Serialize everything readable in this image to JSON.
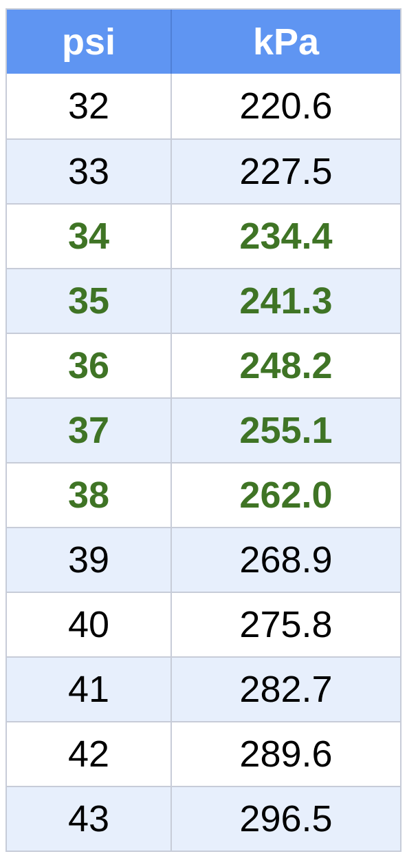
{
  "table": {
    "headers": [
      "psi",
      "kPa"
    ],
    "rows": [
      {
        "psi": "32",
        "kpa": "220.6",
        "highlight": false
      },
      {
        "psi": "33",
        "kpa": "227.5",
        "highlight": false
      },
      {
        "psi": "34",
        "kpa": "234.4",
        "highlight": true
      },
      {
        "psi": "35",
        "kpa": "241.3",
        "highlight": true
      },
      {
        "psi": "36",
        "kpa": "248.2",
        "highlight": true
      },
      {
        "psi": "37",
        "kpa": "255.1",
        "highlight": true
      },
      {
        "psi": "38",
        "kpa": "262.0",
        "highlight": true
      },
      {
        "psi": "39",
        "kpa": "268.9",
        "highlight": false
      },
      {
        "psi": "40",
        "kpa": "275.8",
        "highlight": false
      },
      {
        "psi": "41",
        "kpa": "282.7",
        "highlight": false
      },
      {
        "psi": "42",
        "kpa": "289.6",
        "highlight": false
      },
      {
        "psi": "43",
        "kpa": "296.5",
        "highlight": false
      }
    ]
  },
  "colors": {
    "header_bg": "#5f95f2",
    "highlight_text": "#3f7425",
    "stripe_bg": "#e7effc",
    "border": "#c7ccd8"
  }
}
